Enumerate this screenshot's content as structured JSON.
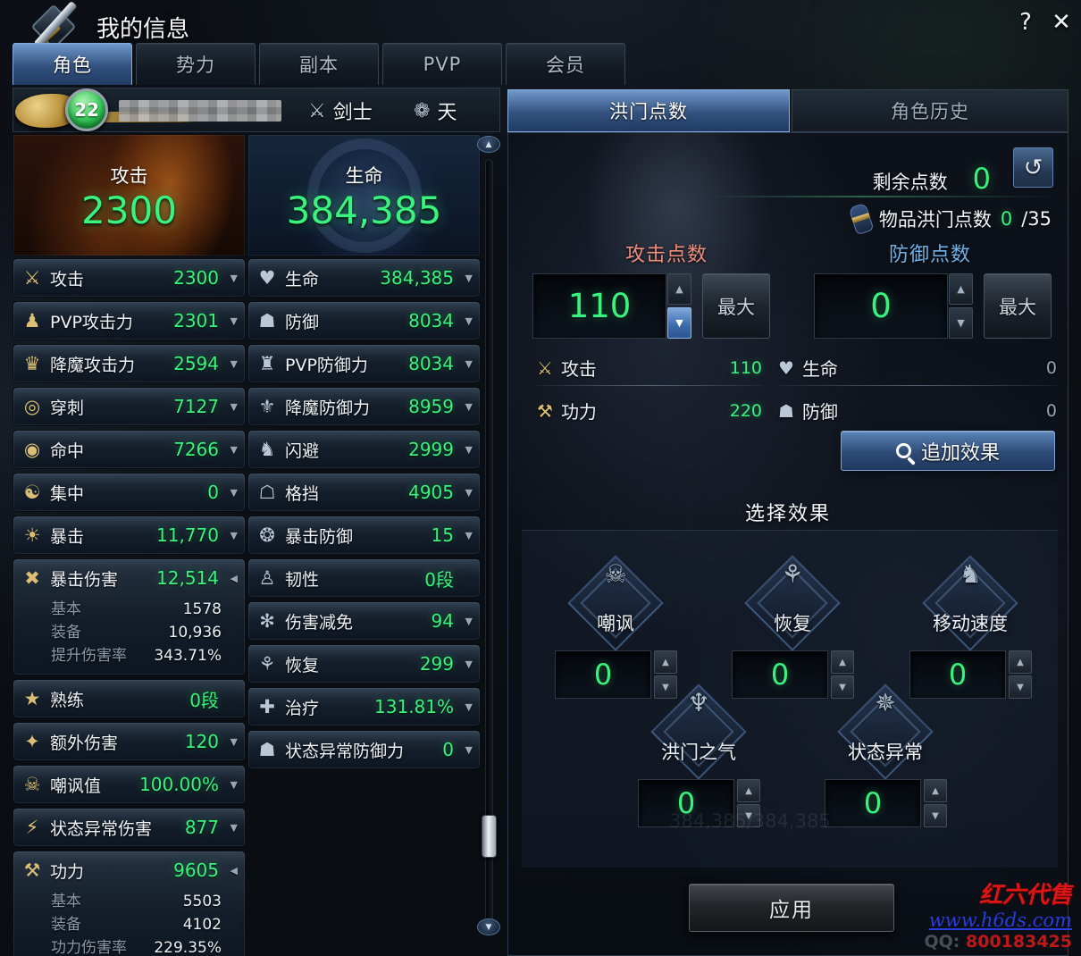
{
  "window": {
    "title": "我的信息",
    "help": "?",
    "close": "✕"
  },
  "main_tabs": [
    {
      "label": "角色",
      "active": true
    },
    {
      "label": "势力",
      "active": false
    },
    {
      "label": "副本",
      "active": false
    },
    {
      "label": "PVP",
      "active": false
    },
    {
      "label": "会员",
      "active": false
    }
  ],
  "character": {
    "level": "22",
    "class_label": "剑士",
    "class_icon": "⚔",
    "race_label": "天",
    "race_icon": "❁"
  },
  "headers": {
    "attack_label": "攻击",
    "attack_value": "2300",
    "hp_label": "生命",
    "hp_value": "384,385"
  },
  "left_stats": [
    {
      "name": "attack",
      "icon": "crossed-swords",
      "glyph": "⚔",
      "label": "攻击",
      "value": "2300",
      "arrow": "down"
    },
    {
      "name": "pvp-attack",
      "icon": "pvp-attack",
      "glyph": "♟",
      "label": "PVP攻击力",
      "value": "2301",
      "arrow": "down"
    },
    {
      "name": "demon-attack",
      "icon": "demon-attack",
      "glyph": "♛",
      "label": "降魔攻击力",
      "value": "2594",
      "arrow": "down"
    },
    {
      "name": "pierce",
      "icon": "pierce-ring",
      "glyph": "◎",
      "label": "穿刺",
      "value": "7127",
      "arrow": "down"
    },
    {
      "name": "accuracy",
      "icon": "target",
      "glyph": "◉",
      "label": "命中",
      "value": "7266",
      "arrow": "down"
    },
    {
      "name": "focus",
      "icon": "focus",
      "glyph": "☯",
      "label": "集中",
      "value": "0",
      "arrow": "down"
    },
    {
      "name": "crit",
      "icon": "starburst",
      "glyph": "☀",
      "label": "暴击",
      "value": "11,770",
      "arrow": "down"
    },
    {
      "name": "crit-damage",
      "icon": "crit-damage",
      "glyph": "✖",
      "label": "暴击伤害",
      "value": "12,514",
      "arrow": "left",
      "sub": [
        {
          "label": "基本",
          "value": "1578"
        },
        {
          "label": "装备",
          "value": "10,936"
        },
        {
          "label": "提升伤害率",
          "value": "343.71%"
        }
      ]
    },
    {
      "name": "mastery",
      "icon": "star",
      "glyph": "★",
      "label": "熟练",
      "value": "0段",
      "arrow": "none"
    },
    {
      "name": "extra-damage",
      "icon": "spark",
      "glyph": "✦",
      "label": "额外伤害",
      "value": "120",
      "arrow": "down"
    },
    {
      "name": "threat",
      "icon": "skull",
      "glyph": "☠",
      "label": "嘲讽值",
      "value": "100.00%",
      "arrow": "down"
    },
    {
      "name": "status-abnormal-damage",
      "icon": "lightning",
      "glyph": "⚡",
      "label": "状态异常伤害",
      "value": "877",
      "arrow": "down"
    },
    {
      "name": "power",
      "icon": "power-fist",
      "glyph": "⚒",
      "label": "功力",
      "value": "9605",
      "arrow": "left",
      "sub": [
        {
          "label": "基本",
          "value": "5503"
        },
        {
          "label": "装备",
          "value": "4102"
        },
        {
          "label": "功力伤害率",
          "value": "229.35%"
        }
      ]
    }
  ],
  "right_stats": [
    {
      "name": "hp",
      "icon": "heart",
      "glyph": "♥",
      "label": "生命",
      "value": "384,385",
      "arrow": "down"
    },
    {
      "name": "defense",
      "icon": "shield",
      "glyph": "☗",
      "label": "防御",
      "value": "8034",
      "arrow": "down"
    },
    {
      "name": "pvp-defense",
      "icon": "pvp-shield",
      "glyph": "♜",
      "label": "PVP防御力",
      "value": "8034",
      "arrow": "down"
    },
    {
      "name": "demon-defense",
      "icon": "demon-mask",
      "glyph": "⚜",
      "label": "降魔防御力",
      "value": "8959",
      "arrow": "down"
    },
    {
      "name": "evasion",
      "icon": "runner",
      "glyph": "♞",
      "label": "闪避",
      "value": "2999",
      "arrow": "down"
    },
    {
      "name": "block",
      "icon": "block",
      "glyph": "☖",
      "label": "格挡",
      "value": "4905",
      "arrow": "down"
    },
    {
      "name": "crit-defense",
      "icon": "star-shield",
      "glyph": "❂",
      "label": "暴击防御",
      "value": "15",
      "arrow": "down"
    },
    {
      "name": "tenacity",
      "icon": "tenacity",
      "glyph": "♙",
      "label": "韧性",
      "value": "0段",
      "arrow": "none"
    },
    {
      "name": "damage-reduction",
      "icon": "star-down",
      "glyph": "✻",
      "label": "伤害减免",
      "value": "94",
      "arrow": "down"
    },
    {
      "name": "recovery",
      "icon": "sprout",
      "glyph": "⚘",
      "label": "恢复",
      "value": "299",
      "arrow": "down"
    },
    {
      "name": "healing",
      "icon": "heart-cross",
      "glyph": "✚",
      "label": "治疗",
      "value": "131.81%",
      "arrow": "down"
    },
    {
      "name": "status-abnormal-defense",
      "icon": "dotted-shield",
      "glyph": "☗",
      "label": "状态异常防御力",
      "value": "0",
      "arrow": "down"
    }
  ],
  "panel": {
    "tabs": [
      {
        "label": "洪门点数",
        "active": true
      },
      {
        "label": "角色历史",
        "active": false
      }
    ],
    "remaining": {
      "label": "剩余点数",
      "value": "0"
    },
    "item_points": {
      "label": "物品洪门点数",
      "value": "0",
      "max": "/35"
    },
    "attack_points": {
      "label": "攻击点数",
      "value": "110",
      "max_button": "最大"
    },
    "defense_points": {
      "label": "防御点数",
      "value": "0",
      "max_button": "最大"
    },
    "summary_left": [
      {
        "icon": "crossed-swords",
        "glyph": "⚔",
        "label": "攻击",
        "value": "110"
      },
      {
        "icon": "power-fist",
        "glyph": "⚒",
        "label": "功力",
        "value": "220"
      }
    ],
    "summary_right": [
      {
        "icon": "heart",
        "glyph": "♥",
        "label": "生命",
        "value": "0"
      },
      {
        "icon": "shield",
        "glyph": "☗",
        "label": "防御",
        "value": "0"
      }
    ],
    "add_effect_button": "追加效果",
    "select_effect_title": "选择效果",
    "effects": [
      {
        "icon": "skull",
        "glyph": "☠",
        "label": "嘲讽",
        "value": "0"
      },
      {
        "icon": "sprout",
        "glyph": "⚘",
        "label": "恢复",
        "value": "0"
      },
      {
        "icon": "runner",
        "glyph": "♞",
        "label": "移动速度",
        "value": "0"
      },
      {
        "icon": "dragon",
        "glyph": "♆",
        "label": "洪门之气",
        "value": "0"
      },
      {
        "icon": "stars",
        "glyph": "✵",
        "label": "状态异常",
        "value": "0"
      }
    ],
    "faint_bg_text": "384,385/384,385",
    "apply_button": "应用"
  },
  "watermark": {
    "line1": "红六代售",
    "line2": "www.h6ds.com",
    "line3_prefix": "QQ:",
    "line3_number": "800183425"
  },
  "colors": {
    "value_green": "#3af27e",
    "attack_points_label": "#ef8e7d",
    "defense_points_label": "#6fb1e8",
    "active_tab_blue": "#4a79b4",
    "watermark_red": "#dc1616",
    "watermark_blue": "#2a3cdc"
  }
}
